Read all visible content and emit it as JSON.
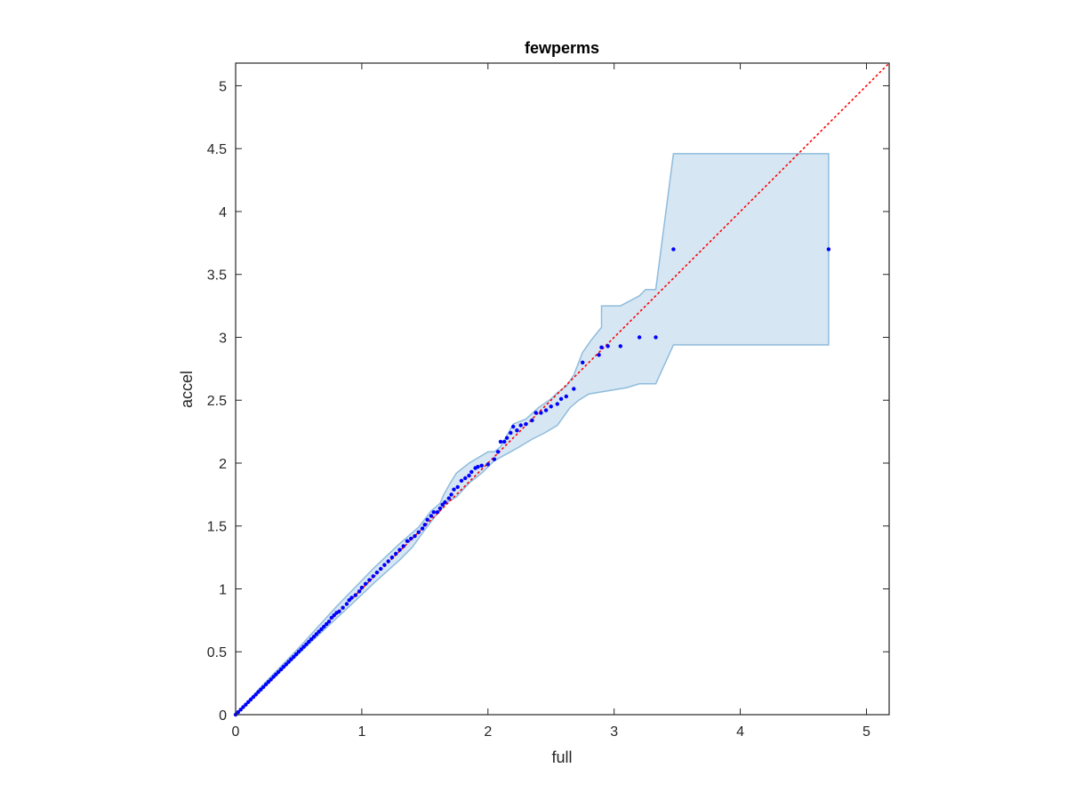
{
  "chart_data": {
    "type": "scatter",
    "title": "fewperms",
    "xlabel": "full",
    "ylabel": "accel",
    "xlim": [
      0,
      5.18
    ],
    "ylim": [
      0,
      5.18
    ],
    "xticks": [
      "0",
      "1",
      "2",
      "3",
      "4",
      "5"
    ],
    "yticks": [
      "0",
      "0.5",
      "1",
      "1.5",
      "2",
      "2.5",
      "3",
      "3.5",
      "4",
      "4.5",
      "5"
    ],
    "grid": false,
    "colors": {
      "points": "#0000ff",
      "reference_line": "#ff0000",
      "band_fill": "#d6e6f3",
      "band_edge": "#8ebcdc",
      "axes": "#262626"
    },
    "reference_line": {
      "style": "dotted",
      "from": [
        0,
        0
      ],
      "to": [
        5.18,
        5.18
      ]
    },
    "band": {
      "upper": [
        [
          0,
          0
        ],
        [
          0.2,
          0.22
        ],
        [
          0.5,
          0.53
        ],
        [
          0.8,
          0.86
        ],
        [
          1.1,
          1.17
        ],
        [
          1.3,
          1.36
        ],
        [
          1.45,
          1.49
        ],
        [
          1.55,
          1.62
        ],
        [
          1.62,
          1.68
        ],
        [
          1.65,
          1.75
        ],
        [
          1.7,
          1.84
        ],
        [
          1.75,
          1.92
        ],
        [
          1.85,
          2.0
        ],
        [
          2.0,
          2.09
        ],
        [
          2.05,
          2.09
        ],
        [
          2.1,
          2.13
        ],
        [
          2.15,
          2.22
        ],
        [
          2.2,
          2.31
        ],
        [
          2.3,
          2.35
        ],
        [
          2.4,
          2.44
        ],
        [
          2.5,
          2.51
        ],
        [
          2.55,
          2.56
        ],
        [
          2.62,
          2.61
        ],
        [
          2.68,
          2.7
        ],
        [
          2.75,
          2.88
        ],
        [
          2.82,
          2.98
        ],
        [
          2.9,
          3.08
        ],
        [
          2.9,
          3.25
        ],
        [
          3.05,
          3.25
        ],
        [
          3.2,
          3.33
        ],
        [
          3.25,
          3.38
        ],
        [
          3.33,
          3.38
        ],
        [
          3.47,
          4.46
        ],
        [
          4.7,
          4.46
        ]
      ],
      "lower": [
        [
          4.7,
          2.94
        ],
        [
          3.47,
          2.94
        ],
        [
          3.33,
          2.63
        ],
        [
          3.2,
          2.63
        ],
        [
          3.1,
          2.6
        ],
        [
          2.8,
          2.55
        ],
        [
          2.72,
          2.5
        ],
        [
          2.65,
          2.44
        ],
        [
          2.55,
          2.3
        ],
        [
          2.45,
          2.24
        ],
        [
          2.35,
          2.19
        ],
        [
          2.25,
          2.13
        ],
        [
          2.18,
          2.09
        ],
        [
          2.05,
          2.02
        ],
        [
          1.95,
          1.92
        ],
        [
          1.85,
          1.84
        ],
        [
          1.75,
          1.73
        ],
        [
          1.68,
          1.69
        ],
        [
          1.6,
          1.6
        ],
        [
          1.5,
          1.47
        ],
        [
          1.4,
          1.33
        ],
        [
          1.3,
          1.23
        ],
        [
          1.2,
          1.14
        ],
        [
          1.1,
          1.05
        ],
        [
          0.9,
          0.86
        ],
        [
          0.6,
          0.58
        ],
        [
          0.3,
          0.29
        ],
        [
          0,
          0
        ]
      ]
    },
    "points": [
      [
        0,
        0
      ],
      [
        0.02,
        0.02
      ],
      [
        0.04,
        0.04
      ],
      [
        0.06,
        0.06
      ],
      [
        0.08,
        0.08
      ],
      [
        0.1,
        0.1
      ],
      [
        0.12,
        0.12
      ],
      [
        0.14,
        0.14
      ],
      [
        0.16,
        0.16
      ],
      [
        0.18,
        0.18
      ],
      [
        0.2,
        0.2
      ],
      [
        0.22,
        0.22
      ],
      [
        0.24,
        0.24
      ],
      [
        0.26,
        0.26
      ],
      [
        0.28,
        0.28
      ],
      [
        0.3,
        0.3
      ],
      [
        0.32,
        0.32
      ],
      [
        0.34,
        0.34
      ],
      [
        0.36,
        0.36
      ],
      [
        0.38,
        0.38
      ],
      [
        0.4,
        0.4
      ],
      [
        0.42,
        0.42
      ],
      [
        0.44,
        0.44
      ],
      [
        0.46,
        0.46
      ],
      [
        0.48,
        0.48
      ],
      [
        0.5,
        0.5
      ],
      [
        0.52,
        0.52
      ],
      [
        0.54,
        0.54
      ],
      [
        0.56,
        0.56
      ],
      [
        0.58,
        0.58
      ],
      [
        0.6,
        0.6
      ],
      [
        0.62,
        0.62
      ],
      [
        0.64,
        0.64
      ],
      [
        0.66,
        0.66
      ],
      [
        0.68,
        0.68
      ],
      [
        0.7,
        0.7
      ],
      [
        0.72,
        0.72
      ],
      [
        0.74,
        0.74
      ],
      [
        0.76,
        0.77
      ],
      [
        0.78,
        0.79
      ],
      [
        0.8,
        0.81
      ],
      [
        0.82,
        0.82
      ],
      [
        0.85,
        0.85
      ],
      [
        0.88,
        0.88
      ],
      [
        0.9,
        0.91
      ],
      [
        0.92,
        0.93
      ],
      [
        0.95,
        0.95
      ],
      [
        0.98,
        0.98
      ],
      [
        1.0,
        1.01
      ],
      [
        1.03,
        1.04
      ],
      [
        1.06,
        1.07
      ],
      [
        1.09,
        1.1
      ],
      [
        1.12,
        1.13
      ],
      [
        1.15,
        1.16
      ],
      [
        1.18,
        1.19
      ],
      [
        1.21,
        1.22
      ],
      [
        1.24,
        1.25
      ],
      [
        1.27,
        1.28
      ],
      [
        1.3,
        1.31
      ],
      [
        1.33,
        1.34
      ],
      [
        1.36,
        1.38
      ],
      [
        1.39,
        1.4
      ],
      [
        1.42,
        1.42
      ],
      [
        1.45,
        1.45
      ],
      [
        1.48,
        1.48
      ],
      [
        1.5,
        1.51
      ],
      [
        1.52,
        1.55
      ],
      [
        1.55,
        1.58
      ],
      [
        1.57,
        1.61
      ],
      [
        1.6,
        1.61
      ],
      [
        1.62,
        1.64
      ],
      [
        1.64,
        1.67
      ],
      [
        1.66,
        1.69
      ],
      [
        1.69,
        1.72
      ],
      [
        1.71,
        1.75
      ],
      [
        1.73,
        1.79
      ],
      [
        1.76,
        1.81
      ],
      [
        1.79,
        1.86
      ],
      [
        1.82,
        1.88
      ],
      [
        1.85,
        1.9
      ],
      [
        1.87,
        1.93
      ],
      [
        1.9,
        1.96
      ],
      [
        1.92,
        1.97
      ],
      [
        1.95,
        1.98
      ],
      [
        2.0,
        1.99
      ],
      [
        2.05,
        2.03
      ],
      [
        2.08,
        2.09
      ],
      [
        2.1,
        2.17
      ],
      [
        2.13,
        2.17
      ],
      [
        2.15,
        2.2
      ],
      [
        2.18,
        2.24
      ],
      [
        2.2,
        2.29
      ],
      [
        2.23,
        2.26
      ],
      [
        2.26,
        2.3
      ],
      [
        2.3,
        2.31
      ],
      [
        2.35,
        2.34
      ],
      [
        2.38,
        2.4
      ],
      [
        2.42,
        2.4
      ],
      [
        2.46,
        2.42
      ],
      [
        2.5,
        2.45
      ],
      [
        2.55,
        2.47
      ],
      [
        2.58,
        2.51
      ],
      [
        2.62,
        2.53
      ],
      [
        2.68,
        2.59
      ],
      [
        2.75,
        2.8
      ],
      [
        2.88,
        2.86
      ],
      [
        2.9,
        2.92
      ],
      [
        2.95,
        2.93
      ],
      [
        3.05,
        2.93
      ],
      [
        3.2,
        3.0
      ],
      [
        3.33,
        3.0
      ],
      [
        3.47,
        3.7
      ],
      [
        4.7,
        3.7
      ]
    ]
  }
}
